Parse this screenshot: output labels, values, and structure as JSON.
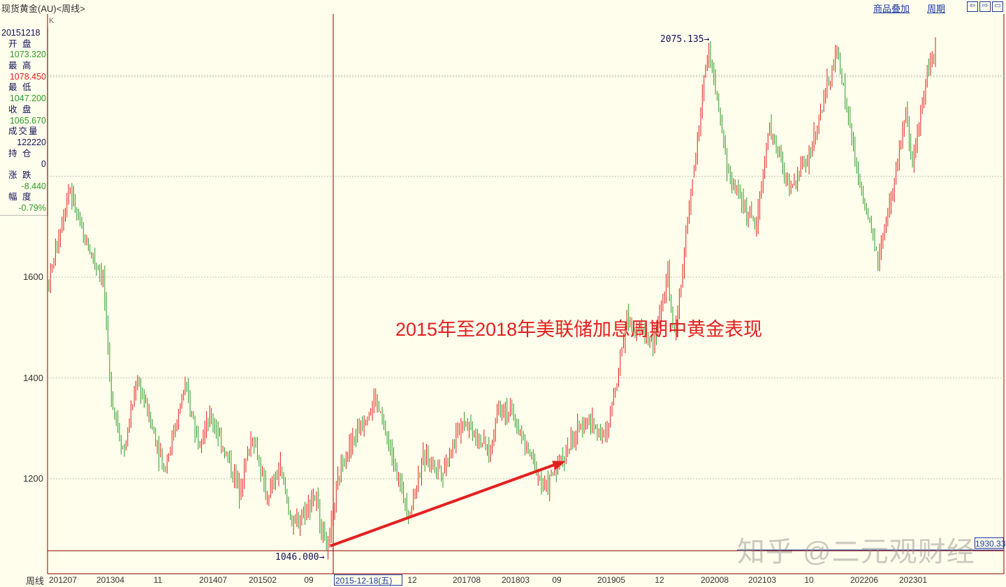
{
  "header": {
    "title": "现货黄金(AU)<周线>",
    "overlay_label": "商品叠加",
    "period_label": "周期",
    "nav_icons": [
      "arrow-left-icon",
      "arrow-right-icon",
      "window-icon"
    ]
  },
  "panel": {
    "date": "20151218",
    "rows": [
      {
        "label": "开 盘",
        "value": "1073.320",
        "color": "#2a9d2a"
      },
      {
        "label": "最 高",
        "value": "1078.450",
        "color": "#e32020"
      },
      {
        "label": "最 低",
        "value": "1047.200",
        "color": "#2a9d2a"
      },
      {
        "label": "收 盘",
        "value": "1065.670",
        "color": "#2a9d2a"
      },
      {
        "label": "成交量",
        "value": "122220",
        "color": "#12125a"
      },
      {
        "label": "持 仓",
        "value": "0",
        "color": "#12125a"
      },
      {
        "label": "涨 跌",
        "value": "-8.440",
        "color": "#2a9d2a"
      },
      {
        "label": "幅 度",
        "value": "-0.79%",
        "color": "#2a9d2a"
      }
    ]
  },
  "chart_data": {
    "type": "candlestick",
    "title": "2015年至2018年美联储加息周期中黄金表现",
    "y_ticks": [
      1200,
      1400,
      1600
    ],
    "ylim": [
      1030,
      2130
    ],
    "x_axis_label": "周线",
    "x_ticks": [
      "201207",
      "201304",
      "11",
      "201407",
      "201502",
      "09",
      "12",
      "201708",
      "201803",
      "09",
      "201905",
      "12",
      "202008",
      "202103",
      "10",
      "202206",
      "202301"
    ],
    "cursor_date": "2015-12-18(五)",
    "k_label": "K",
    "markers": {
      "low": "1046.000",
      "high": "2075.135",
      "last_price": "1930.330"
    },
    "anchor_points": [
      [
        "201207",
        1590
      ],
      [
        "201210",
        1780
      ],
      [
        "201212",
        1680
      ],
      [
        "201303",
        1600
      ],
      [
        "201304",
        1380
      ],
      [
        "201306",
        1250
      ],
      [
        "201308",
        1400
      ],
      [
        "201312",
        1220
      ],
      [
        "201403",
        1380
      ],
      [
        "201405",
        1280
      ],
      [
        "201407",
        1320
      ],
      [
        "201411",
        1180
      ],
      [
        "201501",
        1290
      ],
      [
        "201503",
        1160
      ],
      [
        "201505",
        1220
      ],
      [
        "201507",
        1100
      ],
      [
        "201510",
        1170
      ],
      [
        "201512",
        1060
      ],
      [
        "201602",
        1230
      ],
      [
        "201607",
        1360
      ],
      [
        "201612",
        1130
      ],
      [
        "201702",
        1240
      ],
      [
        "201705",
        1220
      ],
      [
        "201708",
        1320
      ],
      [
        "201712",
        1250
      ],
      [
        "201801",
        1350
      ],
      [
        "201803",
        1330
      ],
      [
        "201808",
        1180
      ],
      [
        "201810",
        1230
      ],
      [
        "201902",
        1320
      ],
      [
        "201905",
        1280
      ],
      [
        "201908",
        1520
      ],
      [
        "201912",
        1470
      ],
      [
        "202002",
        1600
      ],
      [
        "202003",
        1480
      ],
      [
        "202008",
        2060
      ],
      [
        "202011",
        1800
      ],
      [
        "202103",
        1700
      ],
      [
        "202105",
        1900
      ],
      [
        "202108",
        1770
      ],
      [
        "202111",
        1850
      ],
      [
        "202203",
        2050
      ],
      [
        "202206",
        1800
      ],
      [
        "202209",
        1630
      ],
      [
        "202211",
        1760
      ],
      [
        "202301",
        1930
      ],
      [
        "202302",
        1810
      ],
      [
        "202304",
        2000
      ],
      [
        "202305",
        2040
      ]
    ],
    "arrow": {
      "from": [
        "201512",
        1060
      ],
      "to": [
        "201811",
        1235
      ]
    }
  },
  "watermark": "知乎 @二元观财经",
  "colors": {
    "up": "#e32020",
    "down": "#2a9d2a",
    "axis": "#8b0000",
    "grid": "#b0b0b0"
  }
}
